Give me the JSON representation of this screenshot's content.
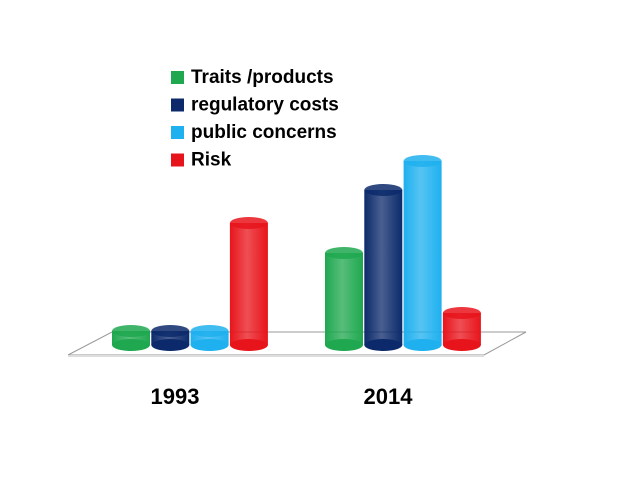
{
  "chart_data": {
    "type": "bar3d",
    "categories": [
      "1993",
      "2014"
    ],
    "series": [
      {
        "name": "Traits /products",
        "color": "#1fa84f",
        "values": [
          14,
          92
        ]
      },
      {
        "name": "regulatory costs",
        "color": "#0c2a6b",
        "values": [
          14,
          155
        ]
      },
      {
        "name": "public concerns",
        "color": "#1eb0ef",
        "values": [
          14,
          184
        ]
      },
      {
        "name": "Risk",
        "color": "#e8141b",
        "values": [
          122,
          32
        ]
      }
    ]
  }
}
